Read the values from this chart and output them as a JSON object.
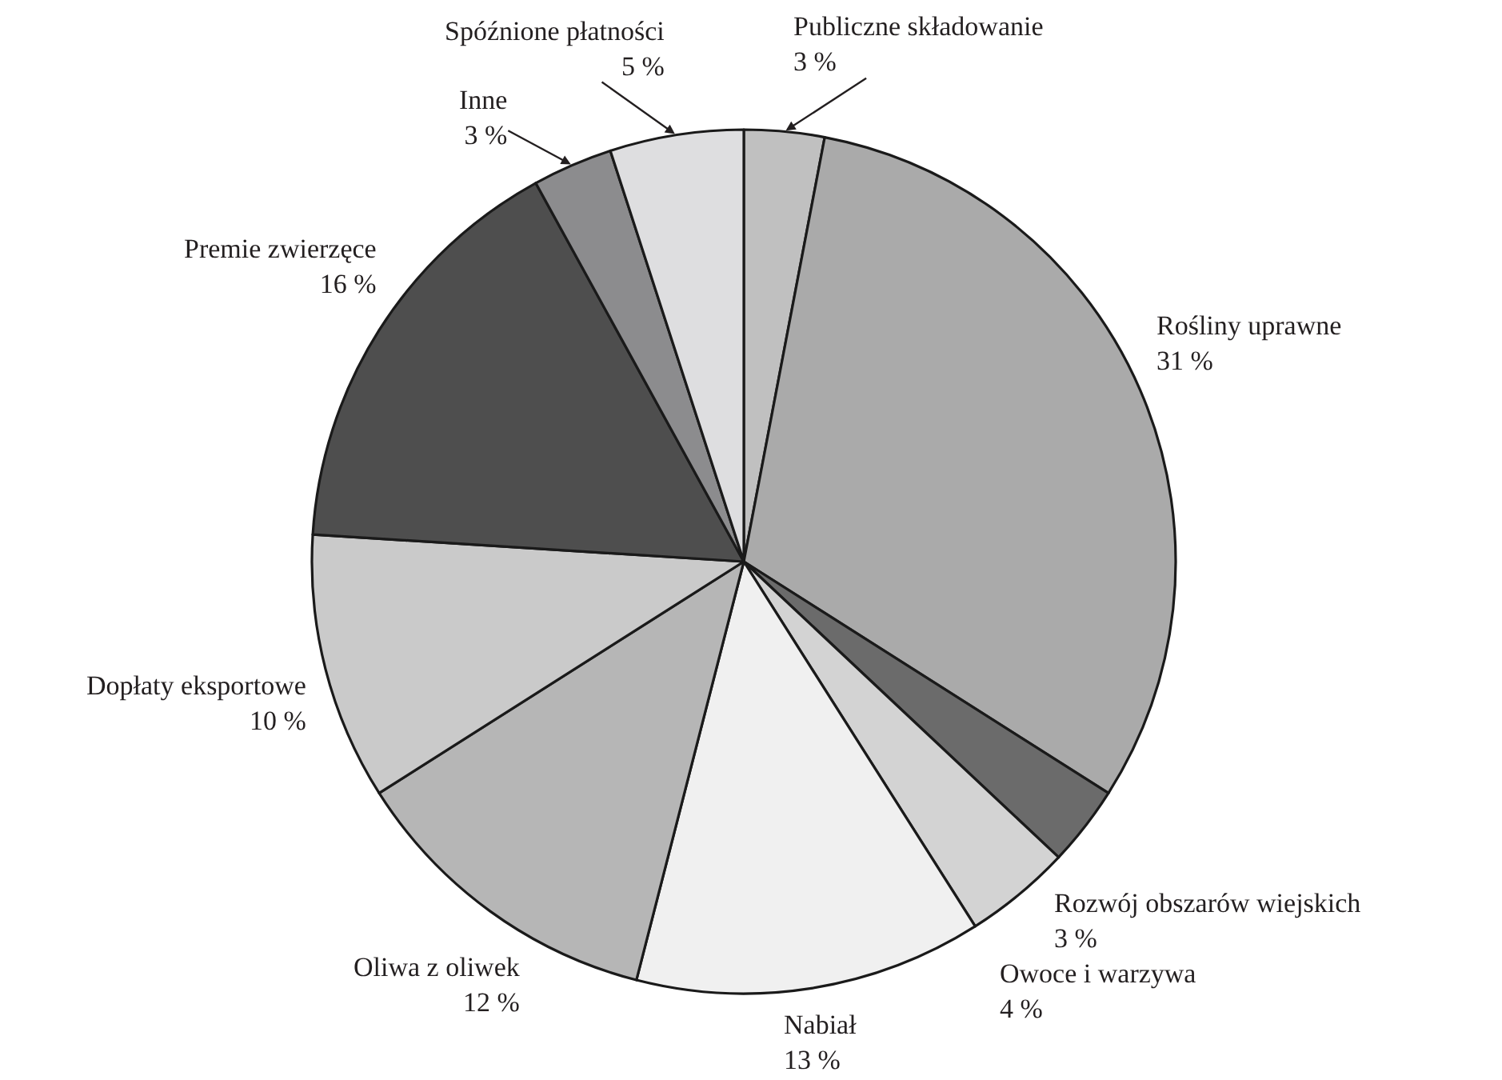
{
  "chart_data": {
    "type": "pie",
    "categories": [
      "Publiczne składowanie",
      "Rośliny uprawne",
      "Rozwój obszarów wiejskich",
      "Owoce i warzywa",
      "Nabiał",
      "Oliwa z oliwek",
      "Dopłaty eksportowe",
      "Premie zwierzęce",
      "Inne",
      "Spóźnione płatności"
    ],
    "values": [
      3,
      31,
      3,
      4,
      13,
      12,
      10,
      16,
      3,
      5
    ],
    "value_labels": [
      "3 %",
      "31 %",
      "3 %",
      "4 %",
      "13 %",
      "12 %",
      "10 %",
      "16 %",
      "3 %",
      "5 %"
    ],
    "colors": [
      "#c0c0c0",
      "#aaaaaa",
      "#6b6b6b",
      "#d3d3d3",
      "#f0f0f0",
      "#b6b6b6",
      "#cacaca",
      "#4e4e4e",
      "#8c8c8e",
      "#dedee0"
    ],
    "legend": false
  }
}
